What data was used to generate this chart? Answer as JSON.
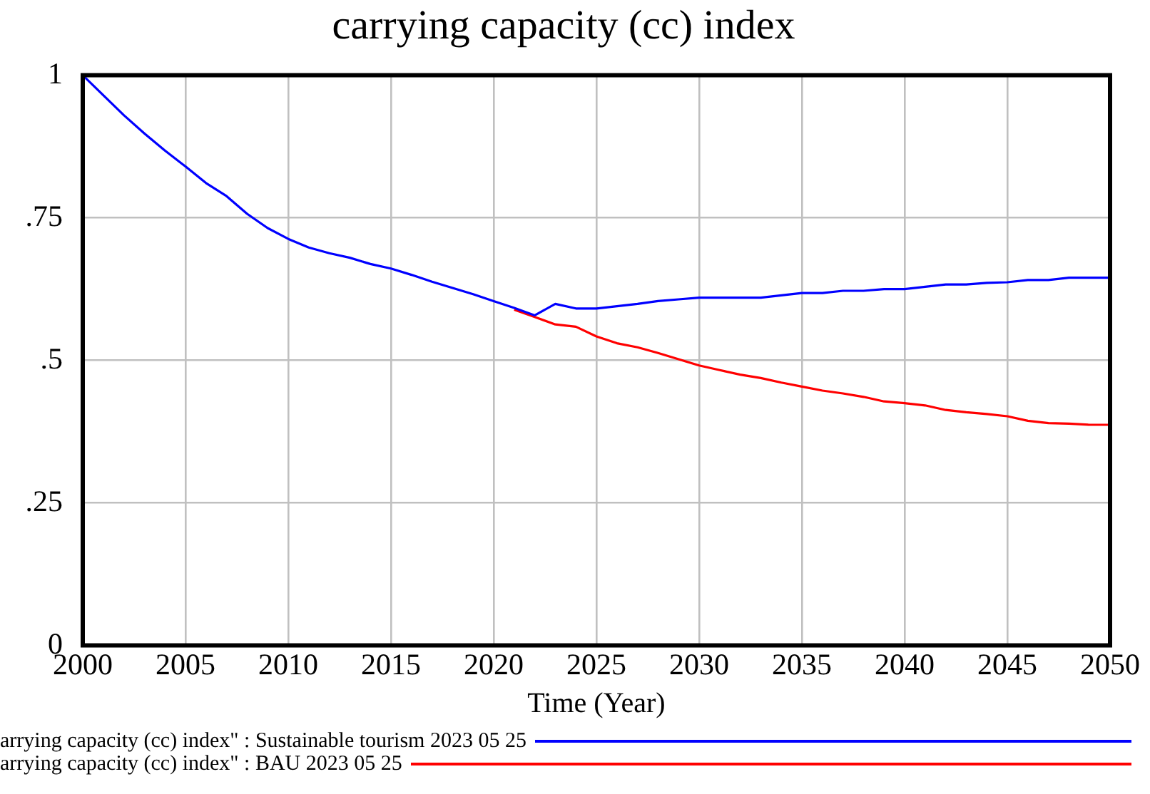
{
  "chart_data": {
    "type": "line",
    "title": "carrying capacity (cc) index",
    "xlabel": "Time (Year)",
    "x": [
      2000,
      2001,
      2002,
      2003,
      2004,
      2005,
      2006,
      2007,
      2008,
      2009,
      2010,
      2011,
      2012,
      2013,
      2014,
      2015,
      2016,
      2017,
      2018,
      2019,
      2020,
      2021,
      2022,
      2023,
      2024,
      2025,
      2026,
      2027,
      2028,
      2029,
      2030,
      2031,
      2032,
      2033,
      2034,
      2035,
      2036,
      2037,
      2038,
      2039,
      2040,
      2041,
      2042,
      2043,
      2044,
      2045,
      2046,
      2047,
      2048,
      2049,
      2050
    ],
    "series": [
      {
        "name": "arrying capacity (cc) index\" : Sustainable tourism 2023 05 25",
        "color": "#0000ff",
        "values": [
          1.0,
          0.965,
          0.93,
          0.898,
          0.868,
          0.84,
          0.811,
          0.788,
          0.757,
          0.732,
          0.713,
          0.698,
          0.688,
          0.68,
          0.669,
          0.661,
          0.65,
          0.638,
          0.627,
          0.616,
          0.604,
          0.592,
          0.579,
          0.599,
          0.591,
          0.591,
          0.595,
          0.599,
          0.604,
          0.607,
          0.61,
          0.61,
          0.61,
          0.61,
          0.614,
          0.618,
          0.618,
          0.622,
          0.622,
          0.625,
          0.625,
          0.629,
          0.633,
          0.633,
          0.636,
          0.637,
          0.641,
          0.641,
          0.645,
          0.645,
          0.645
        ]
      },
      {
        "name": "arrying capacity (cc) index\" : BAU 2023 05 25",
        "color": "#ff0000",
        "values": [
          null,
          null,
          null,
          null,
          null,
          null,
          null,
          null,
          null,
          null,
          null,
          null,
          null,
          null,
          null,
          null,
          null,
          null,
          null,
          null,
          null,
          0.589,
          0.576,
          0.563,
          0.559,
          0.542,
          0.53,
          0.523,
          0.513,
          0.502,
          0.491,
          0.483,
          0.475,
          0.469,
          0.461,
          0.454,
          0.447,
          0.442,
          0.436,
          0.428,
          0.425,
          0.421,
          0.413,
          0.409,
          0.406,
          0.402,
          0.394,
          0.39,
          0.389,
          0.387,
          0.387
        ]
      }
    ],
    "xlim": [
      2000,
      2050
    ],
    "xticks": [
      2000,
      2005,
      2010,
      2015,
      2020,
      2025,
      2030,
      2035,
      2040,
      2045,
      2050
    ],
    "ylim": [
      0,
      1
    ],
    "yticks": [
      0,
      {
        "value": 0.25,
        "label": ".25"
      },
      {
        "value": 0.5,
        "label": ".5"
      },
      {
        "value": 0.75,
        "label": ".75"
      },
      1
    ],
    "grid": true,
    "legend": "bottom",
    "marker": "none",
    "line_style": "solid"
  }
}
